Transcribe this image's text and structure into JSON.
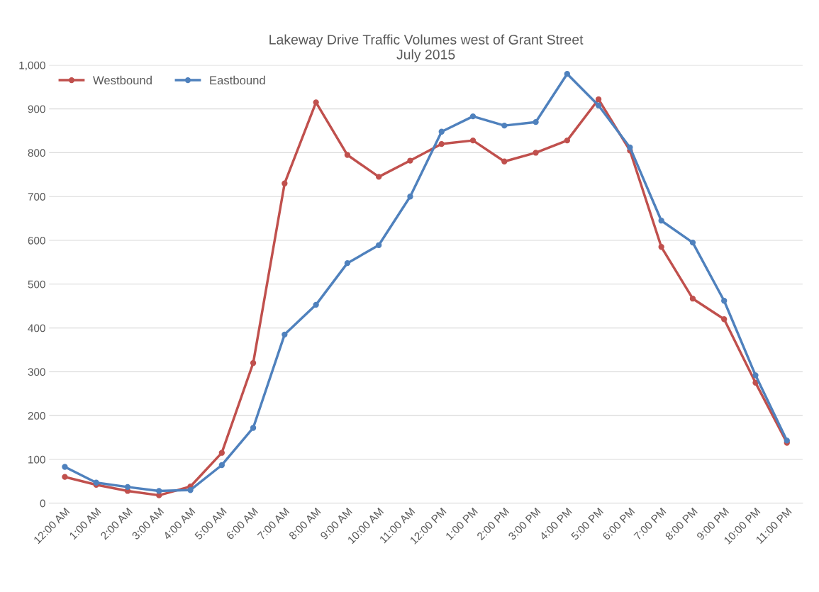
{
  "chart_data": {
    "type": "line",
    "title": "Lakeway Drive Traffic Volumes west of Grant Street\nJuly 2015",
    "categories": [
      "12:00 AM",
      "1:00 AM",
      "2:00 AM",
      "3:00 AM",
      "4:00 AM",
      "5:00 AM",
      "6:00 AM",
      "7:00 AM",
      "8:00 AM",
      "9:00 AM",
      "10:00 AM",
      "11:00 AM",
      "12:00 PM",
      "1:00 PM",
      "2:00 PM",
      "3:00 PM",
      "4:00 PM",
      "5:00 PM",
      "6:00 PM",
      "7:00 PM",
      "8:00 PM",
      "9:00 PM",
      "10:00 PM",
      "11:00 PM"
    ],
    "series": [
      {
        "name": "Westbound",
        "color": "#c0504d",
        "values": [
          60,
          42,
          28,
          18,
          38,
          115,
          320,
          730,
          915,
          795,
          745,
          782,
          820,
          828,
          780,
          800,
          828,
          922,
          805,
          585,
          467,
          420,
          275,
          138
        ]
      },
      {
        "name": "Eastbound",
        "color": "#4f81bd",
        "values": [
          83,
          47,
          37,
          28,
          30,
          87,
          172,
          385,
          453,
          548,
          589,
          700,
          848,
          883,
          862,
          870,
          980,
          908,
          812,
          645,
          595,
          462,
          292,
          143
        ]
      }
    ],
    "ylim": [
      0,
      1000
    ],
    "yticks": [
      0,
      100,
      200,
      300,
      400,
      500,
      600,
      700,
      800,
      900,
      {
        "value": 1000,
        "label": "1,000"
      }
    ],
    "grid": "y",
    "legend": "top left",
    "marker": "circle",
    "line_style": "solid"
  }
}
